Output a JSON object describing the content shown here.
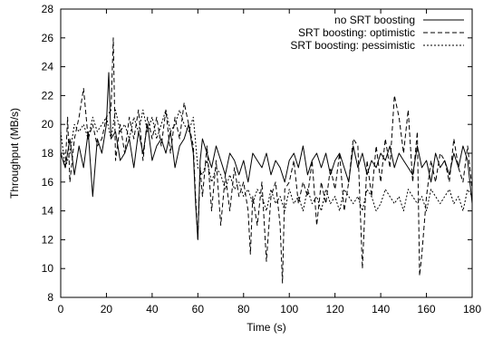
{
  "chart_data": {
    "type": "line",
    "title": "",
    "xlabel": "Time (s)",
    "ylabel": "Throughput (MB/s)",
    "xlim": [
      0,
      180
    ],
    "ylim": [
      8,
      28
    ],
    "xticks": [
      0,
      20,
      40,
      60,
      80,
      100,
      120,
      140,
      160,
      180
    ],
    "yticks": [
      8,
      10,
      12,
      14,
      16,
      18,
      20,
      22,
      24,
      26,
      28
    ],
    "grid": false,
    "legend": "top-right",
    "series": [
      {
        "name": "no SRT boosting",
        "style": "solid",
        "x": [
          0,
          2,
          4,
          6,
          8,
          10,
          12,
          14,
          16,
          18,
          20,
          21,
          22,
          24,
          26,
          28,
          30,
          32,
          34,
          36,
          38,
          40,
          42,
          44,
          46,
          48,
          50,
          52,
          54,
          56,
          58,
          59,
          60,
          61,
          62,
          64,
          66,
          68,
          70,
          72,
          74,
          76,
          78,
          80,
          82,
          84,
          86,
          88,
          90,
          92,
          94,
          96,
          98,
          100,
          102,
          104,
          106,
          108,
          110,
          112,
          114,
          116,
          118,
          120,
          122,
          124,
          126,
          128,
          130,
          132,
          134,
          136,
          138,
          140,
          142,
          144,
          146,
          148,
          150,
          152,
          154,
          156,
          158,
          160,
          162,
          164,
          166,
          168,
          170,
          172,
          174,
          176,
          178,
          180
        ],
        "y": [
          18,
          17,
          19,
          16.5,
          18.5,
          17,
          19.5,
          15,
          19,
          18,
          20,
          23.6,
          19,
          19.5,
          17.5,
          18,
          19,
          17,
          19.5,
          18,
          20,
          17.5,
          18.5,
          19,
          18,
          19.5,
          17,
          18.5,
          19,
          20,
          18,
          14.5,
          12,
          17.5,
          19,
          18,
          17,
          18.5,
          17.5,
          16.5,
          18,
          17.5,
          16.5,
          17.5,
          16,
          18,
          17.5,
          17,
          18,
          16.5,
          17.5,
          17,
          16,
          17.5,
          18,
          17,
          18.5,
          16.5,
          17.5,
          18,
          17,
          18,
          16.5,
          17.5,
          18,
          17,
          16,
          18.5,
          17,
          18,
          16.5,
          17.5,
          17,
          18,
          17.5,
          18.5,
          17,
          18,
          17.5,
          17,
          16.5,
          18.5,
          17,
          17.5,
          16,
          18,
          17,
          17.5,
          16.5,
          18,
          17,
          18.5,
          17.5,
          14.5
        ]
      },
      {
        "name": "SRT boosting: optimistic",
        "style": "dashed",
        "x": [
          0,
          2,
          3,
          4,
          6,
          8,
          10,
          12,
          14,
          16,
          18,
          20,
          22,
          23,
          24,
          26,
          28,
          30,
          32,
          34,
          36,
          38,
          40,
          42,
          44,
          46,
          48,
          50,
          52,
          54,
          56,
          58,
          59,
          60,
          61,
          62,
          64,
          66,
          68,
          70,
          72,
          74,
          76,
          78,
          80,
          82,
          83,
          84,
          86,
          88,
          90,
          92,
          94,
          96,
          97,
          98,
          100,
          102,
          104,
          106,
          108,
          110,
          112,
          114,
          116,
          118,
          120,
          122,
          124,
          126,
          128,
          130,
          132,
          134,
          136,
          138,
          140,
          142,
          144,
          146,
          148,
          150,
          152,
          154,
          156,
          157,
          158,
          160,
          162,
          164,
          166,
          168,
          170,
          172,
          174,
          176,
          178,
          180
        ],
        "y": [
          18,
          17,
          20.5,
          16,
          19,
          20.5,
          22.5,
          19,
          20,
          18.5,
          19,
          20.5,
          21,
          26,
          17.5,
          20,
          18,
          20.5,
          19,
          21,
          17.5,
          20.5,
          19,
          20.5,
          18.5,
          21,
          18,
          20.5,
          19,
          21.5,
          20,
          18.5,
          15,
          12,
          17,
          15,
          18.5,
          14,
          17.5,
          13,
          16.5,
          14,
          17,
          15,
          16,
          14,
          11,
          15,
          13,
          16,
          10.5,
          15,
          16,
          13,
          9,
          15.5,
          16,
          17.5,
          14.5,
          16,
          15,
          17.5,
          13,
          16,
          14.5,
          17,
          15.5,
          18,
          14,
          16,
          19,
          18.5,
          10,
          17.5,
          15,
          18.5,
          16,
          19,
          17,
          22,
          20.5,
          18,
          21,
          16,
          19.5,
          9.5,
          11,
          15,
          17.5,
          16,
          18,
          17.5,
          16,
          19,
          17,
          16,
          18.5,
          15.5
        ]
      },
      {
        "name": "SRT boosting: pessimistic",
        "style": "dotted",
        "x": [
          0,
          2,
          4,
          6,
          8,
          10,
          12,
          14,
          16,
          18,
          20,
          22,
          24,
          26,
          28,
          30,
          32,
          34,
          36,
          38,
          40,
          42,
          44,
          46,
          48,
          50,
          52,
          54,
          56,
          58,
          60,
          62,
          64,
          66,
          68,
          70,
          72,
          74,
          76,
          78,
          80,
          82,
          84,
          86,
          88,
          90,
          92,
          94,
          96,
          98,
          100,
          102,
          104,
          106,
          108,
          110,
          112,
          114,
          116,
          118,
          120,
          122,
          124,
          126,
          128,
          130,
          132,
          134,
          136,
          138,
          140,
          142,
          144,
          146,
          148,
          150,
          152,
          154,
          156,
          158,
          160,
          162,
          164,
          166,
          168,
          170,
          172,
          174,
          176,
          178,
          180
        ],
        "y": [
          19.5,
          17,
          18,
          20,
          19.5,
          20,
          19,
          20.5,
          19.5,
          20,
          20.5,
          19,
          21,
          19.5,
          20,
          19,
          20.5,
          19.5,
          21,
          19.5,
          20.5,
          19,
          20,
          21,
          19.5,
          20,
          21,
          20,
          19.5,
          20.5,
          17,
          16.5,
          17.5,
          16,
          17,
          16.5,
          15.5,
          16.5,
          15.5,
          16,
          15,
          15.5,
          14.5,
          15.5,
          15,
          14,
          15.5,
          14.5,
          15,
          14,
          15.5,
          14.5,
          15,
          14,
          15.5,
          14.5,
          15,
          14,
          15.5,
          14.5,
          15,
          14,
          15.5,
          15,
          14.5,
          15,
          14,
          15.5,
          15,
          14,
          14.5,
          15.5,
          15,
          14.5,
          15,
          14,
          15.5,
          15,
          14.5,
          15,
          14,
          15.5,
          15,
          14.5,
          15,
          15.5,
          14.5,
          15,
          14,
          15.5,
          15
        ]
      }
    ]
  }
}
